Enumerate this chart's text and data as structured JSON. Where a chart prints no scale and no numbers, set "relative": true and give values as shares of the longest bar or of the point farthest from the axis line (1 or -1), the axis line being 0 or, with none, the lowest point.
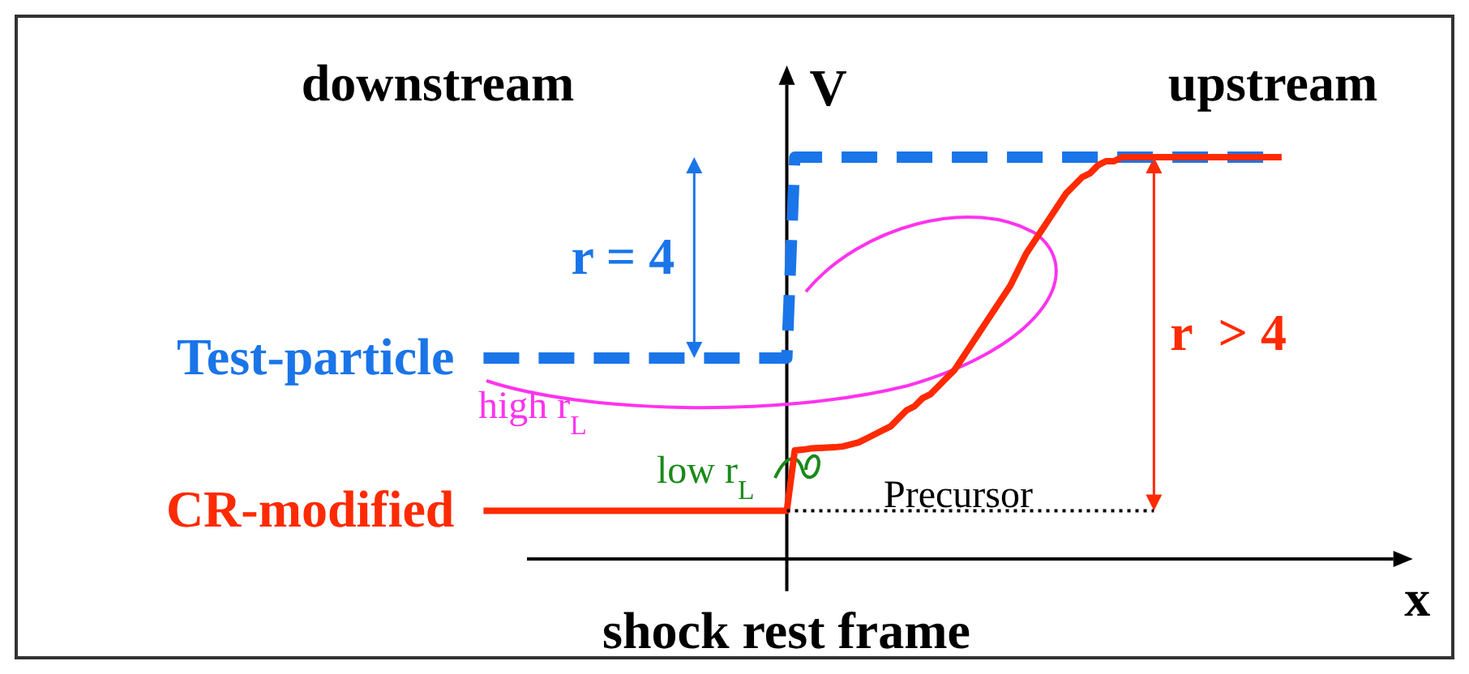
{
  "chart_data": {
    "type": "line",
    "relative": true,
    "xlabel": "x",
    "ylabel": "V",
    "legend": false,
    "annotations": [
      "downstream",
      "upstream",
      "r = 4",
      "r  > 4",
      "high r$_{L}$",
      "low r$_{L}$",
      "shock rest frame",
      "Precursor"
    ],
    "categories": [
      null,
      null,
      null,
      null,
      null,
      null,
      null,
      null,
      null,
      null,
      null,
      null,
      null,
      null,
      null,
      null,
      null,
      null,
      null,
      null,
      null,
      null,
      null,
      null,
      null,
      null,
      null,
      null,
      null,
      null,
      null,
      null,
      null,
      null,
      null,
      null,
      null,
      null,
      null,
      null,
      null,
      null,
      null,
      null,
      null,
      null,
      null,
      null,
      null,
      null,
      null,
      null,
      null,
      null,
      null,
      null,
      null,
      null,
      null,
      null,
      null,
      null,
      null,
      null,
      null,
      null,
      null,
      null,
      null,
      null,
      null,
      null,
      null,
      null,
      null,
      null,
      null,
      null,
      null,
      null,
      null,
      null,
      null,
      null,
      null,
      null,
      null,
      null,
      null,
      null,
      null,
      null,
      null,
      null,
      null,
      null,
      null,
      null,
      null,
      null,
      null
    ],
    "series": [
      {
        "name": "Test-particle",
        "color": "#1a75e8",
        "line_style": "dashed",
        "values": [
          0.5,
          0.5,
          0.5,
          0.5,
          0.5,
          0.5,
          0.5,
          0.5,
          0.5,
          0.5,
          0.5,
          0.5,
          0.5,
          0.5,
          0.5,
          0.5,
          0.5,
          0.5,
          0.5,
          0.5,
          0.5,
          0.5,
          0.5,
          0.5,
          0.5,
          0.5,
          0.5,
          0.5,
          0.5,
          0.5,
          0.5,
          0.5,
          0.5,
          0.5,
          0.5,
          0.5,
          0.5,
          0.5,
          0.5,
          1,
          1,
          1,
          1,
          1,
          1,
          1,
          1,
          1,
          1,
          1,
          1,
          1,
          1,
          1,
          1,
          1,
          1,
          1,
          1,
          1,
          1,
          1,
          1,
          1,
          1,
          1,
          1,
          1,
          1,
          1,
          1,
          1,
          1,
          1,
          1,
          1,
          1,
          1,
          1,
          1,
          1,
          1,
          1,
          1,
          1,
          1,
          1,
          1,
          1,
          1,
          1,
          1,
          1,
          1,
          1,
          1,
          1,
          1,
          1,
          1,
          1
        ]
      },
      {
        "name": "CR-modified",
        "color": "#ff2a00",
        "line_style": "solid",
        "values": [
          0.12,
          0.12,
          0.12,
          0.12,
          0.12,
          0.12,
          0.12,
          0.12,
          0.12,
          0.12,
          0.12,
          0.12,
          0.12,
          0.12,
          0.12,
          0.12,
          0.12,
          0.12,
          0.12,
          0.12,
          0.12,
          0.12,
          0.12,
          0.12,
          0.12,
          0.12,
          0.12,
          0.12,
          0.12,
          0.12,
          0.12,
          0.12,
          0.12,
          0.12,
          0.12,
          0.12,
          0.12,
          0.12,
          0.12,
          0.27,
          0.272,
          0.275,
          0.276,
          0.277,
          0.278,
          0.28,
          0.285,
          0.29,
          0.3,
          0.31,
          0.32,
          0.33,
          0.35,
          0.37,
          0.38,
          0.4,
          0.41,
          0.43,
          0.45,
          0.47,
          0.5,
          0.53,
          0.56,
          0.59,
          0.62,
          0.65,
          0.68,
          0.72,
          0.76,
          0.79,
          0.82,
          0.85,
          0.88,
          0.91,
          0.93,
          0.95,
          0.96,
          0.98,
          0.99,
          0.99,
          1,
          1,
          1,
          1,
          1,
          1,
          1,
          1,
          1,
          1,
          1,
          1,
          1,
          1,
          1,
          1,
          1,
          1,
          1,
          1,
          1
        ]
      },
      {
        "color": "#000000",
        "line_style": "dotted",
        "values": [
          null,
          null,
          null,
          null,
          null,
          null,
          null,
          null,
          null,
          null,
          null,
          null,
          null,
          null,
          null,
          null,
          null,
          null,
          null,
          null,
          null,
          null,
          null,
          null,
          null,
          null,
          null,
          null,
          null,
          null,
          null,
          null,
          null,
          null,
          null,
          null,
          null,
          null,
          0.12,
          0.12,
          0.12,
          0.12,
          0.12,
          0.12,
          0.12,
          0.12,
          0.12,
          0.12,
          0.12,
          0.12,
          0.12,
          0.12,
          0.12,
          0.12,
          0.12,
          0.12,
          0.12,
          0.12,
          0.12,
          0.12,
          0.12,
          0.12,
          0.12,
          0.12,
          0.12,
          0.12,
          0.12,
          0.12,
          0.12,
          0.12,
          0.12,
          0.12,
          0.12,
          0.12,
          0.12,
          0.12,
          0.12,
          0.12,
          0.12,
          0.12,
          0.12,
          0.12,
          0.12,
          0.12,
          0.12,
          null,
          null,
          null,
          null,
          null,
          null,
          null,
          null,
          null,
          null,
          null,
          null,
          null,
          null,
          null,
          null
        ]
      }
    ]
  }
}
